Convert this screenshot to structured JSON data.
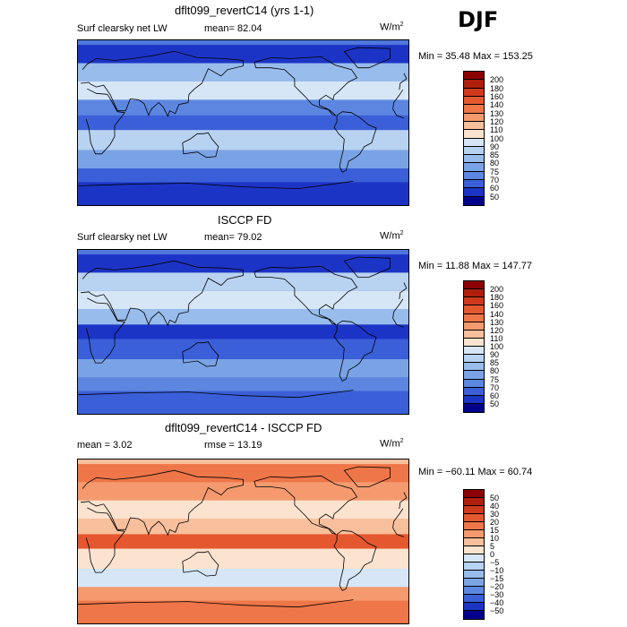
{
  "season": "DJF",
  "panels": [
    {
      "title": "dflt099_revertC14 (yrs 1-1)",
      "left_label": "Surf clearsky net LW",
      "mid_label": "mean=  82.04",
      "units": "W/m",
      "units_exp": "2",
      "minmax": "Min =  35.48 Max = 153.25",
      "colorbar": {
        "levels": [
          "200",
          "180",
          "160",
          "140",
          "130",
          "120",
          "110",
          "100",
          "90",
          "85",
          "80",
          "75",
          "70",
          "60",
          "50"
        ],
        "colors": [
          "#8b0000",
          "#b01e0e",
          "#d0391e",
          "#e5582f",
          "#ee7648",
          "#f59a6e",
          "#f8bf9c",
          "#fbe3cf",
          "#d6e6f7",
          "#b8d2f1",
          "#98bceb",
          "#7aa3e6",
          "#5c86e0",
          "#3b5fd8",
          "#1c34c6",
          "#00008b"
        ]
      },
      "field": {
        "base": "#4f77dc",
        "bands": [
          {
            "lat": [
              85,
              65
            ],
            "color": "#1c34c6"
          },
          {
            "lat": [
              65,
              45
            ],
            "color": "#98bceb"
          },
          {
            "lat": [
              45,
              25
            ],
            "color": "#d6e6f7"
          },
          {
            "lat": [
              25,
              8
            ],
            "color": "#5c86e0"
          },
          {
            "lat": [
              8,
              -8
            ],
            "color": "#3b5fd8"
          },
          {
            "lat": [
              -8,
              -30
            ],
            "color": "#b8d2f1"
          },
          {
            "lat": [
              -30,
              -50
            ],
            "color": "#7aa3e6"
          },
          {
            "lat": [
              -50,
              -65
            ],
            "color": "#3b5fd8"
          },
          {
            "lat": [
              -65,
              -90
            ],
            "color": "#1c34c6"
          }
        ]
      }
    },
    {
      "title": "ISCCP FD",
      "left_label": "Surf clearsky net LW",
      "mid_label": "mean=  79.02",
      "units": "W/m",
      "units_exp": "2",
      "minmax": "Min =  11.88 Max = 147.77",
      "colorbar": {
        "levels": [
          "200",
          "180",
          "160",
          "140",
          "130",
          "120",
          "110",
          "100",
          "90",
          "85",
          "80",
          "75",
          "70",
          "60",
          "50"
        ],
        "colors": [
          "#8b0000",
          "#b01e0e",
          "#d0391e",
          "#e5582f",
          "#ee7648",
          "#f59a6e",
          "#f8bf9c",
          "#fbe3cf",
          "#d6e6f7",
          "#b8d2f1",
          "#98bceb",
          "#7aa3e6",
          "#5c86e0",
          "#3b5fd8",
          "#1c34c6",
          "#00008b"
        ]
      },
      "field": {
        "base": "#4f77dc",
        "bands": [
          {
            "lat": [
              85,
              65
            ],
            "color": "#1c34c6"
          },
          {
            "lat": [
              65,
              45
            ],
            "color": "#b8d2f1"
          },
          {
            "lat": [
              45,
              25
            ],
            "color": "#d6e6f7"
          },
          {
            "lat": [
              25,
              8
            ],
            "color": "#98bceb"
          },
          {
            "lat": [
              8,
              -8
            ],
            "color": "#1c34c6"
          },
          {
            "lat": [
              -8,
              -30
            ],
            "color": "#3b5fd8"
          },
          {
            "lat": [
              -30,
              -50
            ],
            "color": "#7aa3e6"
          },
          {
            "lat": [
              -50,
              -65
            ],
            "color": "#5c86e0"
          },
          {
            "lat": [
              -65,
              -90
            ],
            "color": "#3b5fd8"
          }
        ]
      }
    },
    {
      "title": "dflt099_revertC14 - ISCCP FD",
      "left_label": "mean =    3.02",
      "mid_label": "rmse =  13.19",
      "units": "W/m",
      "units_exp": "2",
      "minmax": "Min = −60.11 Max =  60.74",
      "colorbar": {
        "levels": [
          "50",
          "40",
          "30",
          "20",
          "15",
          "10",
          "5",
          "0",
          "−5",
          "−10",
          "−15",
          "−20",
          "−30",
          "−40",
          "−50"
        ],
        "colors": [
          "#8b0000",
          "#b01e0e",
          "#d0391e",
          "#e5582f",
          "#ee7648",
          "#f59a6e",
          "#f8bf9c",
          "#fbe3cf",
          "#d6e6f7",
          "#b8d2f1",
          "#98bceb",
          "#7aa3e6",
          "#5c86e0",
          "#3b5fd8",
          "#1c34c6",
          "#00008b"
        ]
      },
      "field": {
        "base": "#f8bf9c",
        "bands": [
          {
            "lat": [
              85,
              65
            ],
            "color": "#ee7648"
          },
          {
            "lat": [
              65,
              45
            ],
            "color": "#f59a6e"
          },
          {
            "lat": [
              45,
              25
            ],
            "color": "#fbe3cf"
          },
          {
            "lat": [
              25,
              8
            ],
            "color": "#f8bf9c"
          },
          {
            "lat": [
              8,
              -8
            ],
            "color": "#e5582f"
          },
          {
            "lat": [
              -8,
              -30
            ],
            "color": "#fbe3cf"
          },
          {
            "lat": [
              -30,
              -50
            ],
            "color": "#d6e6f7"
          },
          {
            "lat": [
              -50,
              -65
            ],
            "color": "#f59a6e"
          },
          {
            "lat": [
              -65,
              -90
            ],
            "color": "#ee7648"
          }
        ]
      }
    }
  ],
  "chart_data": [
    {
      "type": "heatmap",
      "title": "dflt099_revertC14 (yrs 1-1)",
      "subtitle": "Surf clearsky net LW",
      "season": "DJF",
      "units": "W/m2",
      "mean": 82.04,
      "min": 35.48,
      "max": 153.25,
      "xlim": [
        0,
        360
      ],
      "ylim": [
        -90,
        90
      ],
      "contour_levels": [
        50,
        60,
        70,
        75,
        80,
        85,
        90,
        100,
        110,
        120,
        130,
        140,
        160,
        180,
        200
      ],
      "zonal_bands": [
        {
          "lat": [
            85,
            65
          ],
          "value_range": [
            50,
            60
          ]
        },
        {
          "lat": [
            65,
            45
          ],
          "value_range": [
            80,
            85
          ]
        },
        {
          "lat": [
            45,
            25
          ],
          "value_range": [
            90,
            100
          ]
        },
        {
          "lat": [
            25,
            8
          ],
          "value_range": [
            70,
            75
          ]
        },
        {
          "lat": [
            8,
            -8
          ],
          "value_range": [
            60,
            70
          ]
        },
        {
          "lat": [
            -8,
            -30
          ],
          "value_range": [
            85,
            90
          ]
        },
        {
          "lat": [
            -30,
            -50
          ],
          "value_range": [
            75,
            80
          ]
        },
        {
          "lat": [
            -50,
            -65
          ],
          "value_range": [
            60,
            70
          ]
        },
        {
          "lat": [
            -65,
            -90
          ],
          "value_range": [
            50,
            60
          ]
        }
      ]
    },
    {
      "type": "heatmap",
      "title": "ISCCP FD",
      "subtitle": "Surf clearsky net LW",
      "season": "DJF",
      "units": "W/m2",
      "mean": 79.02,
      "min": 11.88,
      "max": 147.77,
      "xlim": [
        0,
        360
      ],
      "ylim": [
        -90,
        90
      ],
      "contour_levels": [
        50,
        60,
        70,
        75,
        80,
        85,
        90,
        100,
        110,
        120,
        130,
        140,
        160,
        180,
        200
      ],
      "zonal_bands": [
        {
          "lat": [
            85,
            65
          ],
          "value_range": [
            50,
            60
          ]
        },
        {
          "lat": [
            65,
            45
          ],
          "value_range": [
            85,
            90
          ]
        },
        {
          "lat": [
            45,
            25
          ],
          "value_range": [
            90,
            100
          ]
        },
        {
          "lat": [
            25,
            8
          ],
          "value_range": [
            80,
            85
          ]
        },
        {
          "lat": [
            8,
            -8
          ],
          "value_range": [
            50,
            60
          ]
        },
        {
          "lat": [
            -8,
            -30
          ],
          "value_range": [
            60,
            70
          ]
        },
        {
          "lat": [
            -30,
            -50
          ],
          "value_range": [
            75,
            80
          ]
        },
        {
          "lat": [
            -50,
            -65
          ],
          "value_range": [
            70,
            75
          ]
        },
        {
          "lat": [
            -65,
            -90
          ],
          "value_range": [
            60,
            70
          ]
        }
      ]
    },
    {
      "type": "heatmap",
      "title": "dflt099_revertC14 - ISCCP FD",
      "season": "DJF",
      "units": "W/m2",
      "mean": 3.02,
      "rmse": 13.19,
      "min": -60.11,
      "max": 60.74,
      "xlim": [
        0,
        360
      ],
      "ylim": [
        -90,
        90
      ],
      "contour_levels": [
        -50,
        -40,
        -30,
        -20,
        -15,
        -10,
        -5,
        0,
        5,
        10,
        15,
        20,
        30,
        40,
        50
      ],
      "zonal_bands": [
        {
          "lat": [
            85,
            65
          ],
          "value_range": [
            10,
            15
          ]
        },
        {
          "lat": [
            65,
            45
          ],
          "value_range": [
            5,
            10
          ]
        },
        {
          "lat": [
            45,
            25
          ],
          "value_range": [
            0,
            5
          ]
        },
        {
          "lat": [
            25,
            8
          ],
          "value_range": [
            0,
            5
          ]
        },
        {
          "lat": [
            8,
            -8
          ],
          "value_range": [
            15,
            20
          ]
        },
        {
          "lat": [
            -8,
            -30
          ],
          "value_range": [
            0,
            5
          ]
        },
        {
          "lat": [
            -30,
            -50
          ],
          "value_range": [
            -5,
            0
          ]
        },
        {
          "lat": [
            -50,
            -65
          ],
          "value_range": [
            5,
            10
          ]
        },
        {
          "lat": [
            -65,
            -90
          ],
          "value_range": [
            10,
            15
          ]
        }
      ]
    }
  ]
}
